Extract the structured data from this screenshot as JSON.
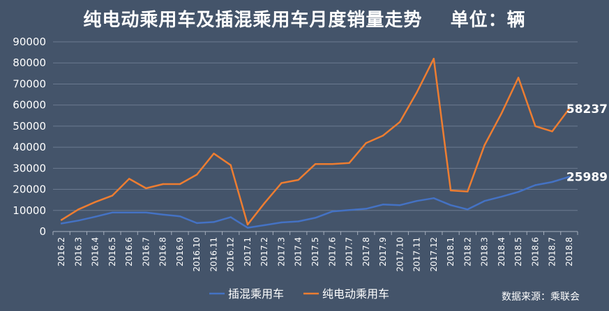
{
  "chart_data": {
    "type": "line",
    "title": "纯电动乘用车及插混乘用车月度销量走势    单位：辆",
    "source": "数据来源：乘联会",
    "categories": [
      "2016.2",
      "2016.3",
      "2016.4",
      "2016.5",
      "2016.6",
      "2016.7",
      "2016.8",
      "2016.9",
      "2016.10",
      "2016.11",
      "2016.12",
      "2017.1",
      "2017.2",
      "2017.3",
      "2017.4",
      "2017.5",
      "2017.6",
      "2017.7",
      "2017.8",
      "2017.9",
      "2017.10",
      "2017.11",
      "2017.12",
      "2018.1",
      "2018.2",
      "2018.3",
      "2018.4",
      "2018.5",
      "2018.6",
      "2018.7",
      "2018.8"
    ],
    "ylim": [
      0,
      90000
    ],
    "yticks": [
      "0",
      "10000",
      "20000",
      "30000",
      "40000",
      "50000",
      "60000",
      "70000",
      "80000",
      "90000"
    ],
    "grid": true,
    "legend_position": "bottom",
    "series": [
      {
        "name": "插混乘用车",
        "color": "#4472C4",
        "values": [
          3800,
          5200,
          7000,
          9000,
          9000,
          9000,
          8000,
          7200,
          4000,
          4500,
          6800,
          1800,
          3000,
          4300,
          4800,
          6500,
          9500,
          10200,
          10800,
          12800,
          12500,
          14500,
          15800,
          12500,
          10500,
          14500,
          16500,
          18800,
          22000,
          23500,
          25989
        ],
        "end_label": "25989"
      },
      {
        "name": "纯电动乘用车",
        "color": "#ED7D31",
        "values": [
          5500,
          10500,
          14000,
          17000,
          25000,
          20500,
          22500,
          22500,
          27000,
          37000,
          31500,
          3300,
          13500,
          23000,
          24500,
          32000,
          32000,
          32500,
          42000,
          45500,
          52000,
          66000,
          82000,
          19500,
          19000,
          41000,
          56000,
          73000,
          50000,
          47500,
          58237
        ],
        "end_label": "58237"
      }
    ]
  }
}
